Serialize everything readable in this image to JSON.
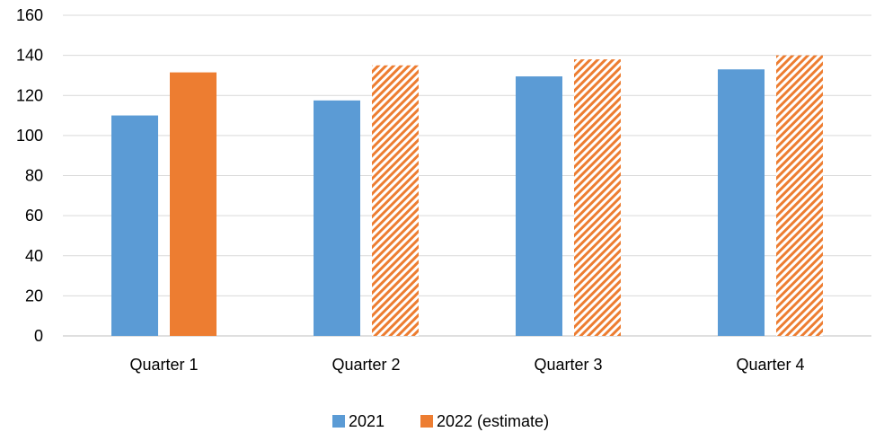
{
  "chart_data": {
    "type": "bar",
    "categories": [
      "Quarter 1",
      "Quarter 2",
      "Quarter 3",
      "Quarter 4"
    ],
    "series": [
      {
        "name": "2021",
        "values": [
          110,
          117.5,
          129.5,
          133
        ],
        "color": "#5b9bd5",
        "hatched": [
          false,
          false,
          false,
          false
        ]
      },
      {
        "name": "2022 (estimate)",
        "values": [
          131.5,
          135,
          138,
          140
        ],
        "color": "#ed7d31",
        "hatched": [
          false,
          true,
          true,
          true
        ]
      }
    ],
    "ylim": [
      0,
      160
    ],
    "yticks": [
      0,
      20,
      40,
      60,
      80,
      100,
      120,
      140,
      160
    ],
    "grid": true,
    "legend": "bottom"
  }
}
